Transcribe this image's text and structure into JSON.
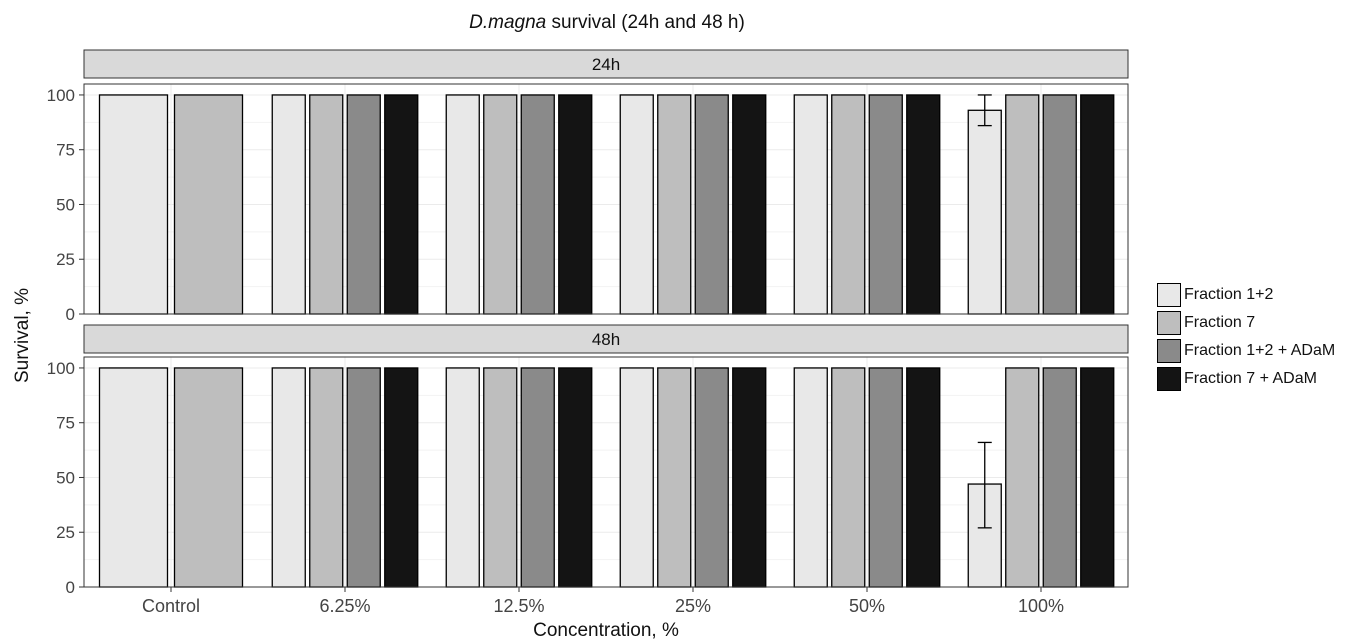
{
  "title": {
    "italic_part": "D.magna",
    "rest": " survival (24h and 48 h)"
  },
  "chart_data": {
    "type": "bar",
    "title": "D.magna survival (24h and 48 h)",
    "xlabel": "Concentration, %",
    "ylabel": "Survival, %",
    "ylim": [
      0,
      105
    ],
    "yticks": [
      0,
      25,
      50,
      75,
      100
    ],
    "categories": [
      "Control",
      "6.25%",
      "12.5%",
      "25%",
      "50%",
      "100%"
    ],
    "legend_position": "right",
    "series": [
      {
        "name": "Fraction 1+2",
        "color": "#e8e8e8"
      },
      {
        "name": "Fraction 7",
        "color": "#bebebe"
      },
      {
        "name": "Fraction 1+2 + ADaM",
        "color": "#8a8a8a"
      },
      {
        "name": "Fraction 7 + ADaM",
        "color": "#141414"
      }
    ],
    "panels": [
      {
        "label": "24h",
        "values": {
          "Control": [
            100,
            100,
            null,
            null
          ],
          "6.25%": [
            100,
            100,
            100,
            100
          ],
          "12.5%": [
            100,
            100,
            100,
            100
          ],
          "25%": [
            100,
            100,
            100,
            100
          ],
          "50%": [
            100,
            100,
            100,
            100
          ],
          "100%": [
            93,
            100,
            100,
            100
          ]
        },
        "errors": {
          "100%": [
            [
              86,
              100
            ],
            null,
            null,
            null
          ]
        }
      },
      {
        "label": "48h",
        "values": {
          "Control": [
            100,
            100,
            null,
            null
          ],
          "6.25%": [
            100,
            100,
            100,
            100
          ],
          "12.5%": [
            100,
            100,
            100,
            100
          ],
          "25%": [
            100,
            100,
            100,
            100
          ],
          "50%": [
            100,
            100,
            100,
            100
          ],
          "100%": [
            47,
            100,
            100,
            100
          ]
        },
        "errors": {
          "100%": [
            [
              27,
              66
            ],
            null,
            null,
            null
          ]
        }
      }
    ]
  }
}
